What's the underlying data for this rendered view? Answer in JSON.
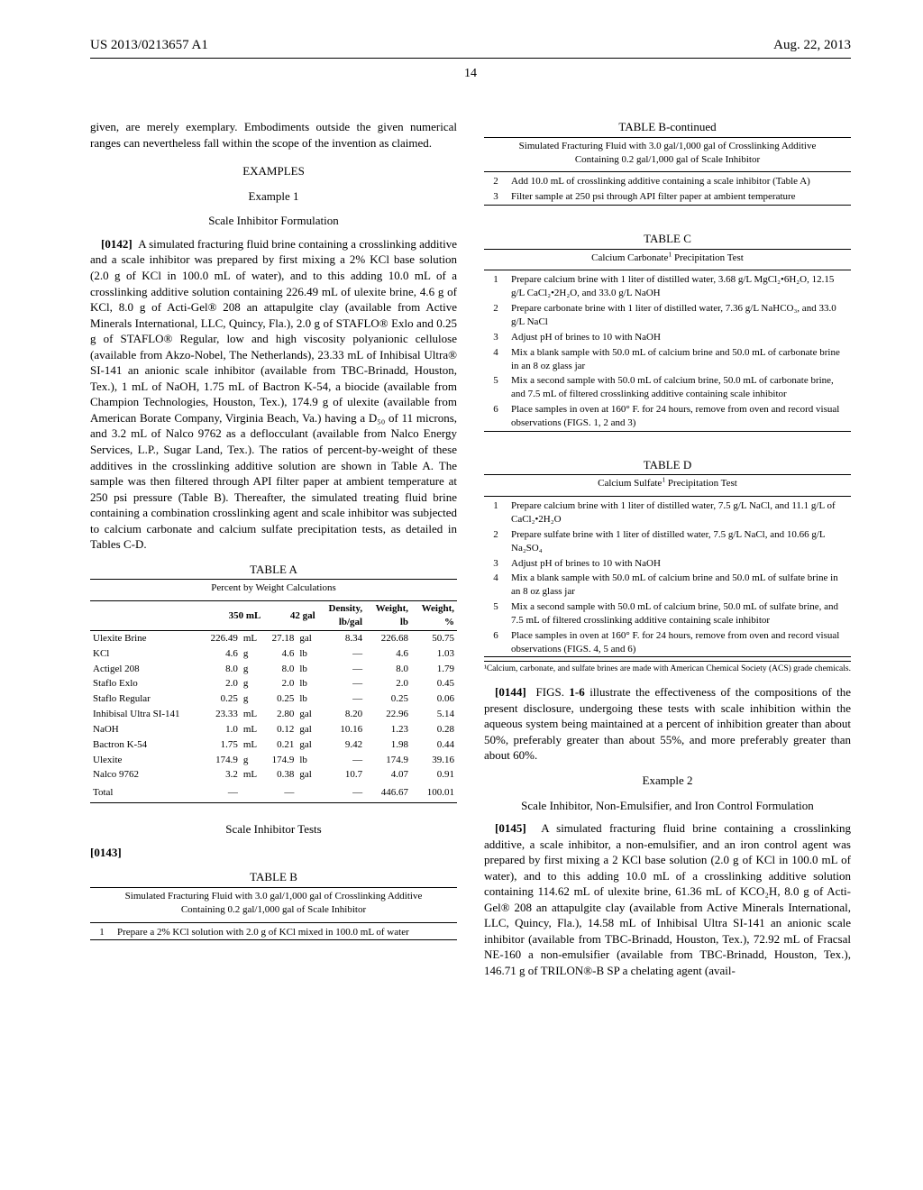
{
  "header": {
    "pub_number": "US 2013/0213657 A1",
    "date": "Aug. 22, 2013",
    "page_number": "14"
  },
  "left": {
    "intro_para": "given, are merely exemplary. Embodiments outside the given numerical ranges can nevertheless fall within the scope of the invention as claimed.",
    "examples_heading": "EXAMPLES",
    "example1_heading": "Example 1",
    "example1_sub": "Scale Inhibitor Formulation",
    "p0142_num": "[0142]",
    "p0142_text": "A simulated fracturing fluid brine containing a crosslinking additive and a scale inhibitor was prepared by first mixing a 2% KCl base solution (2.0 g of KCl in 100.0 mL of water), and to this adding 10.0 mL of a crosslinking additive solution containing 226.49 mL of ulexite brine, 4.6 g of KCl, 8.0 g of Acti-Gel® 208 an attapulgite clay (available from Active Minerals International, LLC, Quincy, Fla.), 2.0 g of STAFLO® Exlo and 0.25 g of STAFLO® Regular, low and high viscosity polyanionic cellulose (available from Akzo-Nobel, The Netherlands), 23.33 mL of Inhibisal Ultra® SI-141 an anionic scale inhibitor (available from TBC-Brinadd, Houston, Tex.), 1 mL of NaOH, 1.75 mL of Bactron K-54, a biocide (available from Champion Technologies, Houston, Tex.), 174.9 g of ulexite (available from American Borate Company, Virginia Beach, Va.) having a D₅₀ of 11 microns, and 3.2 mL of Nalco 9762 as a deflocculant (available from Nalco Energy Services, L.P., Sugar Land, Tex.). The ratios of percent-by-weight of these additives in the crosslinking additive solution are shown in Table A. The sample was then filtered through API filter paper at ambient temperature at 250 psi pressure (Table B). Thereafter, the simulated treating fluid brine containing a combination crosslinking agent and scale inhibitor was subjected to calcium carbonate and calcium sulfate precipitation tests, as detailed in Tables C-D.",
    "table_a": {
      "title": "TABLE A",
      "caption": "Percent by Weight Calculations",
      "headers": [
        "",
        "350 mL",
        "",
        "42 gal",
        "",
        "Density, lb/gal",
        "Weight, lb",
        "Weight, %"
      ],
      "rows": [
        {
          "name": "Ulexite Brine",
          "v1": "226.49",
          "u1": "mL",
          "v2": "27.18",
          "u2": "gal",
          "density": "8.34",
          "wlb": "226.68",
          "wpct": "50.75"
        },
        {
          "name": "KCl",
          "v1": "4.6",
          "u1": "g",
          "v2": "4.6",
          "u2": "lb",
          "density": "—",
          "wlb": "4.6",
          "wpct": "1.03"
        },
        {
          "name": "Actigel 208",
          "v1": "8.0",
          "u1": "g",
          "v2": "8.0",
          "u2": "lb",
          "density": "—",
          "wlb": "8.0",
          "wpct": "1.79"
        },
        {
          "name": "Staflo Exlo",
          "v1": "2.0",
          "u1": "g",
          "v2": "2.0",
          "u2": "lb",
          "density": "—",
          "wlb": "2.0",
          "wpct": "0.45"
        },
        {
          "name": "Staflo Regular",
          "v1": "0.25",
          "u1": "g",
          "v2": "0.25",
          "u2": "lb",
          "density": "—",
          "wlb": "0.25",
          "wpct": "0.06"
        },
        {
          "name": "Inhibisal Ultra SI-141",
          "v1": "23.33",
          "u1": "mL",
          "v2": "2.80",
          "u2": "gal",
          "density": "8.20",
          "wlb": "22.96",
          "wpct": "5.14"
        },
        {
          "name": "NaOH",
          "v1": "1.0",
          "u1": "mL",
          "v2": "0.12",
          "u2": "gal",
          "density": "10.16",
          "wlb": "1.23",
          "wpct": "0.28"
        },
        {
          "name": "Bactron K-54",
          "v1": "1.75",
          "u1": "mL",
          "v2": "0.21",
          "u2": "gal",
          "density": "9.42",
          "wlb": "1.98",
          "wpct": "0.44"
        },
        {
          "name": "Ulexite",
          "v1": "174.9",
          "u1": "g",
          "v2": "174.9",
          "u2": "lb",
          "density": "—",
          "wlb": "174.9",
          "wpct": "39.16"
        },
        {
          "name": "Nalco 9762",
          "v1": "3.2",
          "u1": "mL",
          "v2": "0.38",
          "u2": "gal",
          "density": "10.7",
          "wlb": "4.07",
          "wpct": "0.91"
        }
      ],
      "total": {
        "name": "Total",
        "v1": "—",
        "u1": "",
        "v2": "—",
        "u2": "",
        "density": "—",
        "wlb": "446.67",
        "wpct": "100.01"
      }
    },
    "scale_tests_heading": "Scale Inhibitor Tests",
    "p0143_num": "[0143]",
    "table_b": {
      "title": "TABLE B",
      "caption": "Simulated Fracturing Fluid with 3.0 gal/1,000 gal of Crosslinking Additive Containing 0.2 gal/1,000 gal of Scale Inhibitor",
      "rows": [
        {
          "n": "1",
          "text": "Prepare a 2% KCl solution with 2.0 g of KCl mixed in 100.0 mL of water"
        }
      ]
    }
  },
  "right": {
    "table_b_cont": {
      "title": "TABLE B-continued",
      "caption": "Simulated Fracturing Fluid with 3.0 gal/1,000 gal of Crosslinking Additive Containing 0.2 gal/1,000 gal of Scale Inhibitor",
      "rows": [
        {
          "n": "2",
          "text": "Add 10.0 mL of crosslinking additive containing a scale inhibitor (Table A)"
        },
        {
          "n": "3",
          "text": "Filter sample at 250 psi through API filter paper at ambient temperature"
        }
      ]
    },
    "table_c": {
      "title": "TABLE C",
      "caption_html": "Calcium Carbonate¹ Precipitation Test",
      "rows": [
        {
          "n": "1",
          "text": "Prepare calcium brine with 1 liter of distilled water, 3.68 g/L MgCl₂•6H₂O, 12.15 g/L CaCl₂•2H₂O, and 33.0 g/L NaOH"
        },
        {
          "n": "2",
          "text": "Prepare carbonate brine with 1 liter of distilled water, 7.36 g/L NaHCO₃, and 33.0 g/L NaCl"
        },
        {
          "n": "3",
          "text": "Adjust pH of brines to 10 with NaOH"
        },
        {
          "n": "4",
          "text": "Mix a blank sample with 50.0 mL of calcium brine and 50.0 mL of carbonate brine in an 8 oz glass jar"
        },
        {
          "n": "5",
          "text": "Mix a second sample with 50.0 mL of calcium brine, 50.0 mL of carbonate brine, and 7.5 mL of filtered crosslinking additive containing scale inhibitor"
        },
        {
          "n": "6",
          "text": "Place samples in oven at 160° F. for 24 hours, remove from oven and record visual observations (FIGS. 1, 2 and 3)"
        }
      ]
    },
    "table_d": {
      "title": "TABLE D",
      "caption_html": "Calcium Sulfate¹ Precipitation Test",
      "rows": [
        {
          "n": "1",
          "text": "Prepare calcium brine with 1 liter of distilled water, 7.5 g/L NaCl, and 11.1 g/L of CaCl₂•2H₂O"
        },
        {
          "n": "2",
          "text": "Prepare sulfate brine with 1 liter of distilled water, 7.5 g/L NaCl, and 10.66 g/L Na₂SO₄"
        },
        {
          "n": "3",
          "text": "Adjust pH of brines to 10 with NaOH"
        },
        {
          "n": "4",
          "text": "Mix a blank sample with 50.0 mL of calcium brine and 50.0 mL of sulfate brine in an 8 oz glass jar"
        },
        {
          "n": "5",
          "text": "Mix a second sample with 50.0 mL of calcium brine, 50.0 mL of sulfate brine, and 7.5 mL of filtered crosslinking additive containing scale inhibitor"
        },
        {
          "n": "6",
          "text": "Place samples in oven at 160° F. for 24 hours, remove from oven and record visual observations (FIGS. 4, 5 and 6)"
        }
      ],
      "footnote": "¹Calcium, carbonate, and sulfate brines are made with American Chemical Society (ACS) grade chemicals."
    },
    "p0144_num": "[0144]",
    "p0144_text": "FIGS. 1-6 illustrate the effectiveness of the compositions of the present disclosure, undergoing these tests with scale inhibition within the aqueous system being maintained at a percent of inhibition greater than about 50%, preferably greater than about 55%, and more preferably greater than about 60%.",
    "example2_heading": "Example 2",
    "example2_sub": "Scale Inhibitor, Non-Emulsifier, and Iron Control Formulation",
    "p0145_num": "[0145]",
    "p0145_text": "A simulated fracturing fluid brine containing a crosslinking additive, a scale inhibitor, a non-emulsifier, and an iron control agent was prepared by first mixing a 2 KCl base solution (2.0 g of KCl in 100.0 mL of water), and to this adding 10.0 mL of a crosslinking additive solution containing 114.62 mL of ulexite brine, 61.36 mL of KCO₂H, 8.0 g of Acti-Gel® 208 an attapulgite clay (available from Active Minerals International, LLC, Quincy, Fla.), 14.58 mL of Inhibisal Ultra SI-141 an anionic scale inhibitor (available from TBC-Brinadd, Houston, Tex.), 72.92 mL of Fracsal NE-160 a non-emulsifier (available from TBC-Brinadd, Houston, Tex.), 146.71 g of TRILON®-B SP a chelating agent (avail-"
  }
}
